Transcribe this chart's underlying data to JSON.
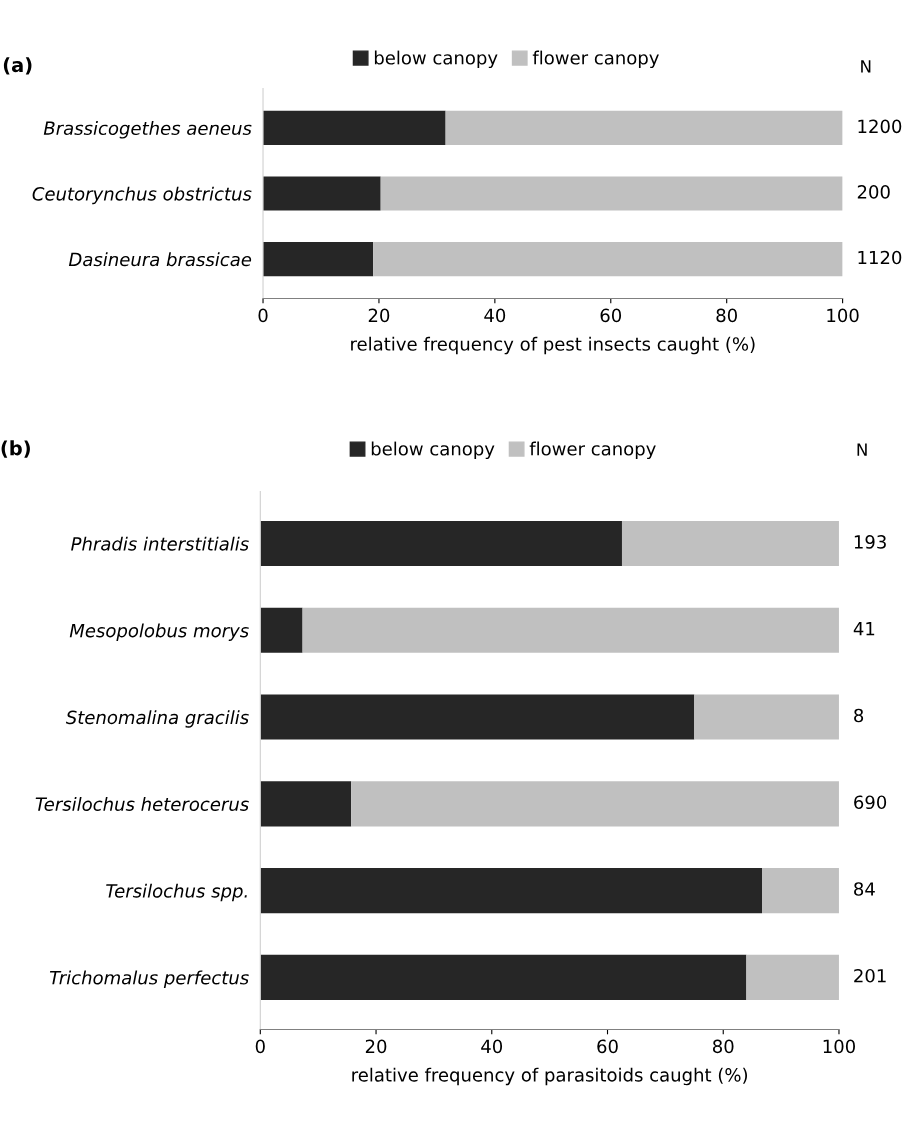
{
  "chart_data": [
    {
      "type": "bar",
      "orientation": "horizontal",
      "stacked": true,
      "xlabel": "relative frequency of pest insects caught (%)",
      "categories": [
        "Brassicogethes aeneus",
        "Ceutorynchus obstrictus",
        "Dasineura brassicae"
      ],
      "series": [
        {
          "name": "below canopy",
          "color": "#262626",
          "values": [
            31.5,
            20.3,
            19
          ]
        },
        {
          "name": "flower canopy",
          "color": "#c0c0c0",
          "values": [
            68.5,
            79.7,
            81
          ]
        }
      ],
      "xlim": [
        0,
        100
      ],
      "xticks": [
        0,
        20,
        40,
        60,
        80,
        100
      ],
      "grid": false,
      "legend": "top",
      "annotations": [
        "(a)",
        "N",
        "1200",
        "200",
        "1120"
      ]
    },
    {
      "type": "bar",
      "orientation": "horizontal",
      "stacked": true,
      "xlabel": "relative frequency of parasitoids caught (%)",
      "categories": [
        "Phradis interstitialis",
        "Mesopolobus morys",
        "Stenomalina gracilis",
        "Tersilochus heterocerus",
        "Tersilochus spp.",
        "Trichomalus perfectus"
      ],
      "series": [
        {
          "name": "below canopy",
          "color": "#262626",
          "values": [
            62.5,
            7.3,
            75,
            15.7,
            86.7,
            84
          ]
        },
        {
          "name": "flower canopy",
          "color": "#c0c0c0",
          "values": [
            37.5,
            92.7,
            25,
            84.3,
            13.3,
            16
          ]
        }
      ],
      "xlim": [
        0,
        100
      ],
      "xticks": [
        0,
        20,
        40,
        60,
        80,
        100
      ],
      "grid": false,
      "legend": "top",
      "annotations": [
        "(b)",
        "N",
        "193",
        "41",
        "8",
        "690",
        "84",
        "201"
      ]
    }
  ]
}
